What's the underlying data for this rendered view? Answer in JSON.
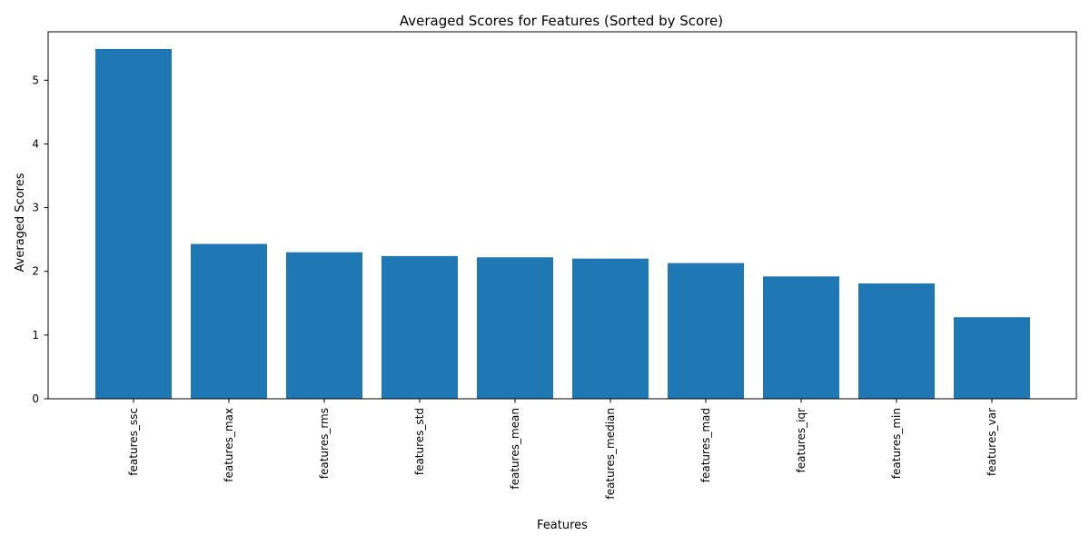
{
  "chart_data": {
    "type": "bar",
    "title": "Averaged Scores for Features (Sorted by Score)",
    "xlabel": "Features",
    "ylabel": "Averaged Scores",
    "categories": [
      "features_ssc",
      "features_max",
      "features_rms",
      "features_std",
      "features_mean",
      "features_median",
      "features_mad",
      "features_iqr",
      "features_min",
      "features_var"
    ],
    "values": [
      5.49,
      2.43,
      2.3,
      2.24,
      2.22,
      2.2,
      2.13,
      1.92,
      1.81,
      1.28
    ],
    "ylim": [
      0,
      5.76
    ],
    "yticks": [
      0,
      1,
      2,
      3,
      4,
      5
    ],
    "grid": false,
    "legend": "none",
    "colors": {
      "bar": "#1f77b4",
      "axis": "#000000",
      "background": "#ffffff"
    }
  }
}
